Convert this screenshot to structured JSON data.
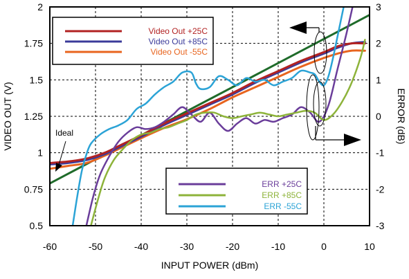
{
  "chart_data": {
    "type": "line",
    "title": "",
    "xlabel": "INPUT POWER (dBm)",
    "ylabel_left": "VIDEO OUT (V)",
    "ylabel_right": "ERROR  (dB)",
    "xlim": [
      -60,
      10
    ],
    "ylim_left": [
      0.5,
      2.0
    ],
    "ylim_right": [
      -3,
      3
    ],
    "grid": true,
    "x_ticks": [
      "-60",
      "-50",
      "-40",
      "-30",
      "-20",
      "-10",
      "0",
      "10"
    ],
    "y_left_ticks": [
      "0.5",
      "0.75",
      "1",
      "1.25",
      "1.5",
      "1.75",
      "2"
    ],
    "y_right_ticks": [
      "-3",
      "-2",
      "-1",
      "0",
      "1",
      "2",
      "3"
    ],
    "legends": [
      {
        "position": "top-left",
        "entries": [
          {
            "label": "Video Out +25C",
            "color": "#b22222"
          },
          {
            "label": "Video Out +85C",
            "color": "#3b3b9a"
          },
          {
            "label": "Video Out  -55C",
            "color": "#e8641e"
          }
        ]
      },
      {
        "position": "bottom-center",
        "entries": [
          {
            "label": "ERR +25C",
            "color": "#6a3d9a"
          },
          {
            "label": "ERR +85C",
            "color": "#8db33a"
          },
          {
            "label": "ERR  -55C",
            "color": "#2ba3d6"
          }
        ]
      }
    ],
    "annotations": [
      {
        "text": "Ideal"
      }
    ],
    "series": [
      {
        "name": "Ideal",
        "axis": "left",
        "color": "#1f6b2a",
        "width": 3,
        "x": [
          -60,
          -50,
          -40,
          -30,
          -20,
          -10,
          0,
          10
        ],
        "y": [
          0.79,
          0.955,
          1.12,
          1.285,
          1.45,
          1.615,
          1.78,
          1.945
        ]
      },
      {
        "name": "Video Out -55C",
        "axis": "left",
        "color": "#e8641e",
        "width": 3,
        "x": [
          -60,
          -56,
          -52,
          -48,
          -44,
          -40,
          -35,
          -30,
          -25,
          -20,
          -15,
          -10,
          -5,
          0,
          3,
          6,
          9
        ],
        "y": [
          0.89,
          0.91,
          0.93,
          0.98,
          1.04,
          1.1,
          1.17,
          1.23,
          1.3,
          1.38,
          1.45,
          1.52,
          1.59,
          1.65,
          1.68,
          1.7,
          1.7
        ]
      },
      {
        "name": "Video Out +85C",
        "axis": "left",
        "color": "#3b3b9a",
        "width": 3,
        "x": [
          -60,
          -56,
          -52,
          -48,
          -44,
          -40,
          -35,
          -30,
          -25,
          -20,
          -15,
          -10,
          -5,
          0,
          3,
          6,
          9
        ],
        "y": [
          0.92,
          0.93,
          0.95,
          0.99,
          1.05,
          1.11,
          1.19,
          1.26,
          1.33,
          1.4,
          1.48,
          1.55,
          1.62,
          1.68,
          1.72,
          1.75,
          1.76
        ]
      },
      {
        "name": "Video Out +25C",
        "axis": "left",
        "color": "#b22222",
        "width": 3,
        "x": [
          -60,
          -56,
          -52,
          -48,
          -44,
          -40,
          -35,
          -30,
          -25,
          -20,
          -15,
          -10,
          -5,
          0,
          3,
          6,
          9
        ],
        "y": [
          0.93,
          0.94,
          0.96,
          1.0,
          1.06,
          1.12,
          1.2,
          1.27,
          1.34,
          1.41,
          1.49,
          1.56,
          1.63,
          1.69,
          1.73,
          1.75,
          1.75
        ]
      },
      {
        "name": "ERR +25C",
        "axis": "right",
        "color": "#6a3d9a",
        "width": 2.5,
        "x": [
          -52,
          -50.5,
          -49,
          -47,
          -45,
          -43,
          -41,
          -39,
          -37,
          -35,
          -33,
          -31,
          -29,
          -27,
          -25,
          -23,
          -21,
          -19,
          -17,
          -15,
          -13,
          -11,
          -9,
          -7,
          -5,
          -3,
          -1,
          1,
          3,
          5,
          7,
          9
        ],
        "y": [
          -3.0,
          -2.2,
          -1.6,
          -1.1,
          -0.7,
          -0.45,
          -0.3,
          -0.35,
          -0.3,
          -0.15,
          0.05,
          0.25,
          0.05,
          -0.15,
          0.1,
          -0.2,
          -0.4,
          -0.2,
          -0.05,
          -0.2,
          -0.1,
          -0.15,
          -0.05,
          0.05,
          0.25,
          0.1,
          -0.15,
          0.3,
          1.3,
          2.3,
          3.4,
          4.5
        ]
      },
      {
        "name": "ERR +85C",
        "axis": "right",
        "color": "#8db33a",
        "width": 2.5,
        "x": [
          -51,
          -49.5,
          -48,
          -46,
          -44,
          -42,
          -40,
          -38,
          -36,
          -34,
          -32,
          -30,
          -28,
          -26,
          -24,
          -22,
          -20,
          -18,
          -16,
          -14,
          -12,
          -10,
          -8,
          -6,
          -4,
          -2,
          0,
          2,
          4,
          6,
          8,
          9
        ],
        "y": [
          -3.0,
          -2.3,
          -1.7,
          -1.2,
          -0.9,
          -0.65,
          -0.5,
          -0.45,
          -0.35,
          -0.3,
          -0.2,
          -0.1,
          0.05,
          0.1,
          0.1,
          0.0,
          -0.05,
          0.0,
          0.05,
          0.1,
          0.05,
          0.0,
          0.05,
          0.1,
          0.15,
          0.1,
          -0.1,
          0.05,
          0.4,
          0.9,
          1.6,
          2.1
        ]
      },
      {
        "name": "ERR -55C",
        "axis": "right",
        "color": "#2ba3d6",
        "width": 2.5,
        "x": [
          -55,
          -54,
          -53,
          -52,
          -51,
          -49,
          -47,
          -45,
          -43,
          -41,
          -39,
          -37,
          -35,
          -33,
          -31,
          -29,
          -28,
          -27,
          -25,
          -23,
          -21,
          -19,
          -17,
          -15,
          -13,
          -11,
          -9,
          -7,
          -5,
          -3,
          -2,
          -1,
          0,
          1,
          2,
          3,
          4,
          5
        ],
        "y": [
          -3.0,
          -2.2,
          -1.5,
          -1.05,
          -0.75,
          -0.5,
          -0.35,
          -0.25,
          -0.1,
          0.2,
          0.35,
          0.6,
          0.8,
          0.95,
          1.2,
          1.2,
          0.9,
          0.75,
          0.8,
          1.1,
          1.0,
          0.85,
          1.05,
          0.95,
          1.0,
          0.85,
          0.95,
          1.05,
          1.25,
          1.2,
          1.15,
          0.95,
          0.85,
          1.1,
          1.6,
          2.2,
          2.8,
          3.4
        ]
      }
    ]
  }
}
